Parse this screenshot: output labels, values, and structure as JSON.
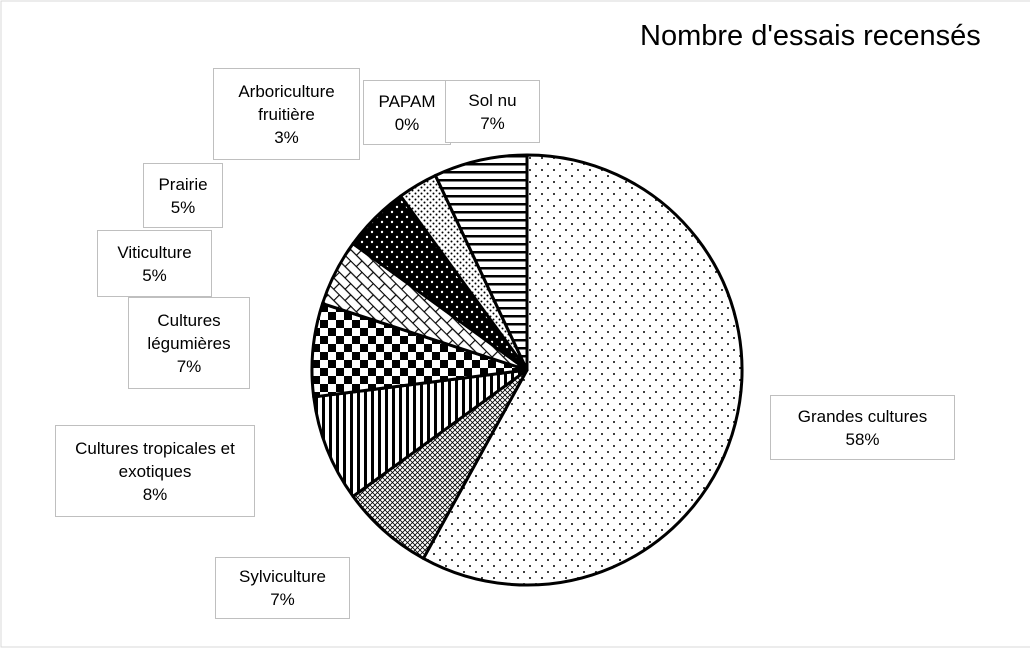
{
  "chart_data": {
    "type": "pie",
    "title": "Nombre d'essais recensés",
    "categories": [
      "Grandes cultures",
      "Sylviculture",
      "Cultures tropicales et exotiques",
      "Cultures légumières",
      "Viticulture",
      "Prairie",
      "Arboriculture fruitière",
      "PAPAM",
      "Sol nu"
    ],
    "values": [
      58,
      7,
      8,
      7,
      5,
      5,
      3,
      0,
      7
    ],
    "value_labels": [
      "58%",
      "7%",
      "8%",
      "7%",
      "5%",
      "5%",
      "3%",
      "0%",
      "7%"
    ]
  }
}
